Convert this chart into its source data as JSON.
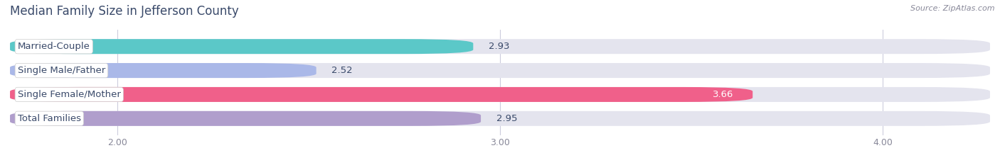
{
  "title": "Median Family Size in Jefferson County",
  "source": "Source: ZipAtlas.com",
  "categories": [
    "Married-Couple",
    "Single Male/Father",
    "Single Female/Mother",
    "Total Families"
  ],
  "values": [
    2.93,
    2.52,
    3.66,
    2.95
  ],
  "bar_colors": [
    "#5bc8c8",
    "#aab8e8",
    "#f0608a",
    "#b09ecc"
  ],
  "bar_bg_color": "#e4e4ee",
  "xlim_min": 1.72,
  "xlim_max": 4.28,
  "xstart": 1.72,
  "xticks": [
    2.0,
    3.0,
    4.0
  ],
  "xtick_labels": [
    "2.00",
    "3.00",
    "4.00"
  ],
  "title_fontsize": 12,
  "label_fontsize": 9.5,
  "value_fontsize": 9.5,
  "background_color": "#ffffff",
  "bar_height": 0.62,
  "bar_gap": 0.38,
  "label_text_color": "#3a4a6a",
  "title_color": "#3a4a6a",
  "source_color": "#888899",
  "grid_color": "#ccccdd",
  "tick_color": "#888899",
  "value_color_dark": "#3a4a6a",
  "value_color_light": "#ffffff"
}
